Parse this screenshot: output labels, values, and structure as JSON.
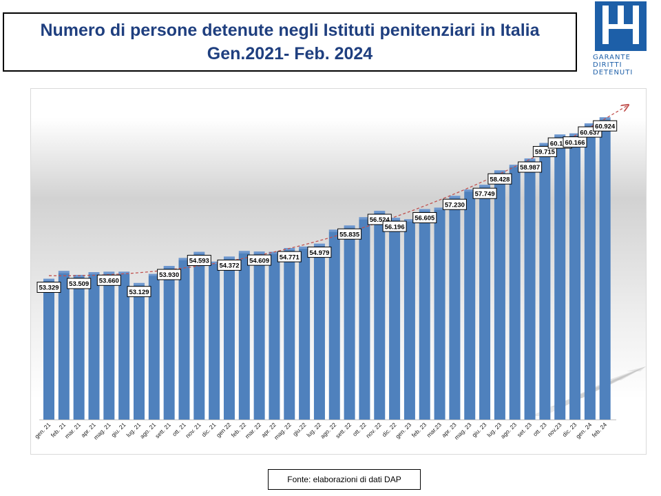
{
  "header": {
    "title_line1": "Numero di persone detenute negli Istituti penitenziari in Italia",
    "title_line2": "Gen.2021- Feb. 2024"
  },
  "logo": {
    "line1": "GARANTE",
    "line2": "DIRITTI",
    "line3": "DETENUTI",
    "color": "#1d5fa8"
  },
  "source": "Fonte: elaborazioni di dati DAP",
  "colors": {
    "bar": "#4f81bd",
    "bar_dark": "#3a6aa6",
    "trend": "#c0504d",
    "title": "#1f3f7f"
  },
  "chart_data": {
    "type": "bar",
    "title": "Numero di persone detenute negli Istituti penitenziari in Italia",
    "subtitle": "Gen.2021- Feb. 2024",
    "xlabel": "",
    "ylabel": "",
    "grid": false,
    "legend": "none",
    "trendline": "polynomial",
    "ylim": [
      46800,
      62000
    ],
    "categories": [
      "gen. 21",
      "feb. 21",
      "mar. 21",
      "apr. 21",
      "mag. 21",
      "giu. 21",
      "lug. 21",
      "ago. 21",
      "sett. 21",
      "ott. 21",
      "nov. 21",
      "dic. 21",
      "gen 22",
      "feb. 22",
      "mar. 22",
      "apr. 22",
      "mag. 22",
      "giu.22",
      "lug. 22",
      "ago. 22",
      "sett. 22",
      "ott. 22",
      "nov. 22",
      "dic. 22",
      "gen. 23",
      "feb. 23",
      "mar.23",
      "apr. 23",
      "mag. 23",
      "giu. 23",
      "lug. 23",
      "ago. 23",
      "set. 23",
      "ott. 23",
      "nov.23",
      "dic. 23",
      "gen. 24",
      "feb. 24"
    ],
    "values": [
      53329,
      53697,
      53509,
      53637,
      53660,
      53661,
      53129,
      53557,
      53930,
      54307,
      54593,
      54134,
      54372,
      54635,
      54609,
      54595,
      54771,
      54841,
      54979,
      55637,
      55835,
      56225,
      56524,
      56196,
      56127,
      56605,
      56674,
      57230,
      57525,
      57749,
      58428,
      58690,
      58987,
      59715,
      60116,
      60166,
      60637,
      60924
    ],
    "data_labels": [
      "53.329",
      "",
      "53.509",
      "",
      "53.660",
      "",
      "53.129",
      "",
      "53.930",
      "",
      "54.593",
      "",
      "54.372",
      "",
      "54.609",
      "",
      "54.771",
      "",
      "54.979",
      "",
      "55.835",
      "",
      "56.524",
      "56.196",
      "",
      "56.605",
      "",
      "57.230",
      "",
      "57.749",
      "58.428",
      "",
      "58.987",
      "59.715",
      "60.116",
      "60.166",
      "60.637",
      "60.924"
    ]
  }
}
